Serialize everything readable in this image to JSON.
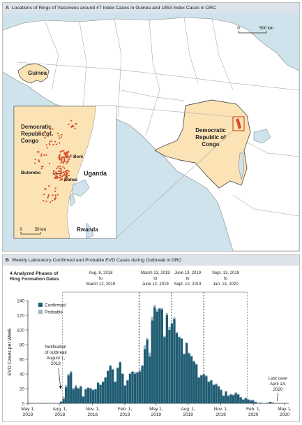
{
  "panel_a": {
    "letter": "A",
    "title": "Locations of Rings of Vaccinees around 47 Index Cases in Guinea and 1853 Index Cases in DRC",
    "scale_main": {
      "zero": "0",
      "value": "500 km"
    },
    "scale_inset": {
      "zero": "0",
      "value": "50 km"
    },
    "labels": {
      "guinea": "Guinea",
      "drc_line1": "Democratic",
      "drc_line2": "Republic of",
      "drc_line3": "Congo",
      "inset_drc_line1": "Democratic",
      "inset_drc_line2": "Republic of",
      "inset_drc_line3": "Congo",
      "beni": "Beni",
      "butembo": "Butembo",
      "katwa": "Katwa",
      "uganda": "Uganda",
      "rwanda": "Rwanda"
    },
    "colors": {
      "water": "#cfe3ec",
      "land": "#ffffff",
      "highlight": "#fbe3b5",
      "cases": "#d4512b",
      "border": "#555555"
    }
  },
  "panel_b": {
    "letter": "B",
    "title": "Weekly Laboratory-Confirmed and Probable EVD Cases during Outbreak in DRC"
  },
  "chart_data": {
    "type": "bar",
    "stacked": true,
    "ylabel": "EVD Cases per Week",
    "ylim": [
      0,
      140
    ],
    "yticks": [
      0,
      20,
      40,
      60,
      80,
      100,
      120,
      140
    ],
    "xlim_week": [
      0,
      106
    ],
    "xticks": [
      {
        "week": 0,
        "line1": "May 1,",
        "line2": "2018"
      },
      {
        "week": 13,
        "line1": "Aug. 1,",
        "line2": "2018"
      },
      {
        "week": 26.3,
        "line1": "Nov. 1,",
        "line2": "2018"
      },
      {
        "week": 39.4,
        "line1": "Feb. 1,",
        "line2": "2019"
      },
      {
        "week": 52.1,
        "line1": "May 1,",
        "line2": "2019"
      },
      {
        "week": 65.1,
        "line1": "Aug. 1,",
        "line2": "2019"
      },
      {
        "week": 78.4,
        "line1": "Nov. 1,",
        "line2": "2019"
      },
      {
        "week": 91.6,
        "line1": "Feb. 1,",
        "line2": "2020"
      },
      {
        "week": 104.3,
        "line1": "May 1,",
        "line2": "2020"
      }
    ],
    "x_unit": "weeks since May 1, 2018",
    "legend": {
      "title_line1": "4 Analyzed Phases of",
      "title_line2": "Ring Formation Dates",
      "position": "top-left"
    },
    "series": [
      {
        "name": "Confirmed",
        "color": "#1f5c73",
        "values": [
          0,
          0,
          0,
          0,
          0,
          0,
          0,
          0,
          0,
          0,
          0,
          0,
          0,
          2,
          6,
          22,
          38,
          42,
          19,
          23,
          20,
          23,
          9,
          19,
          21,
          20,
          18,
          19,
          28,
          25,
          29,
          35,
          44,
          51,
          46,
          29,
          48,
          56,
          40,
          24,
          31,
          40,
          43,
          40,
          42,
          43,
          51,
          74,
          87,
          64,
          113,
          131,
          125,
          129,
          128,
          90,
          120,
          100,
          108,
          115,
          96,
          90,
          88,
          67,
          82,
          68,
          64,
          57,
          53,
          35,
          38,
          39,
          37,
          29,
          31,
          25,
          26,
          23,
          18,
          10,
          16,
          10,
          12,
          11,
          14,
          12,
          8,
          5,
          7,
          5,
          4,
          4,
          2,
          0,
          1,
          0,
          0,
          1,
          2,
          1,
          0,
          0,
          0,
          0,
          0,
          0,
          0
        ]
      },
      {
        "name": "Probable",
        "color": "#9db8c6",
        "values": [
          0,
          0,
          0,
          0,
          0,
          0,
          0,
          0,
          0,
          0,
          0,
          0,
          0,
          1,
          3,
          3,
          2,
          2,
          2,
          2,
          1,
          1,
          1,
          1,
          1,
          1,
          1,
          1,
          1,
          1,
          1,
          1,
          1,
          1,
          1,
          1,
          1,
          1,
          1,
          1,
          1,
          1,
          1,
          3,
          1,
          3,
          1,
          5,
          2,
          5,
          5,
          3,
          3,
          1,
          2,
          2,
          3,
          4,
          2,
          2,
          1,
          1,
          1,
          1,
          1,
          1,
          1,
          1,
          1,
          1,
          1,
          1,
          1,
          1,
          1,
          1,
          1,
          1,
          1,
          1,
          1,
          1,
          1,
          1,
          1,
          1,
          1,
          1,
          1,
          1,
          1,
          1,
          0,
          0,
          0,
          0,
          0,
          0,
          0,
          0,
          0,
          0,
          0,
          0,
          0,
          0,
          0
        ]
      }
    ],
    "phases": [
      {
        "line1": "Aug. 8, 2018",
        "line2": "to",
        "line3": "March 12, 2019",
        "start": 14.1,
        "end": 45.1
      },
      {
        "line1": "March 13, 2019",
        "line2": "to",
        "line3": "June 12, 2019",
        "start": 45.3,
        "end": 58.3
      },
      {
        "line1": "June 13, 2019",
        "line2": "to",
        "line3": "Sept. 12, 2019",
        "start": 58.4,
        "end": 71.4
      },
      {
        "line1": "Sept. 13, 2019",
        "line2": "to",
        "line3": "Jan. 14, 2020",
        "start": 71.6,
        "end": 89.1
      }
    ],
    "annotations": [
      {
        "line1": "Notification",
        "line2": "of outbreak",
        "line3": "August 1,",
        "line4": "2018",
        "week": 13
      },
      {
        "line1": "Last case",
        "line2": "April 13,",
        "line3": "2020",
        "week": 101.6
      }
    ]
  }
}
